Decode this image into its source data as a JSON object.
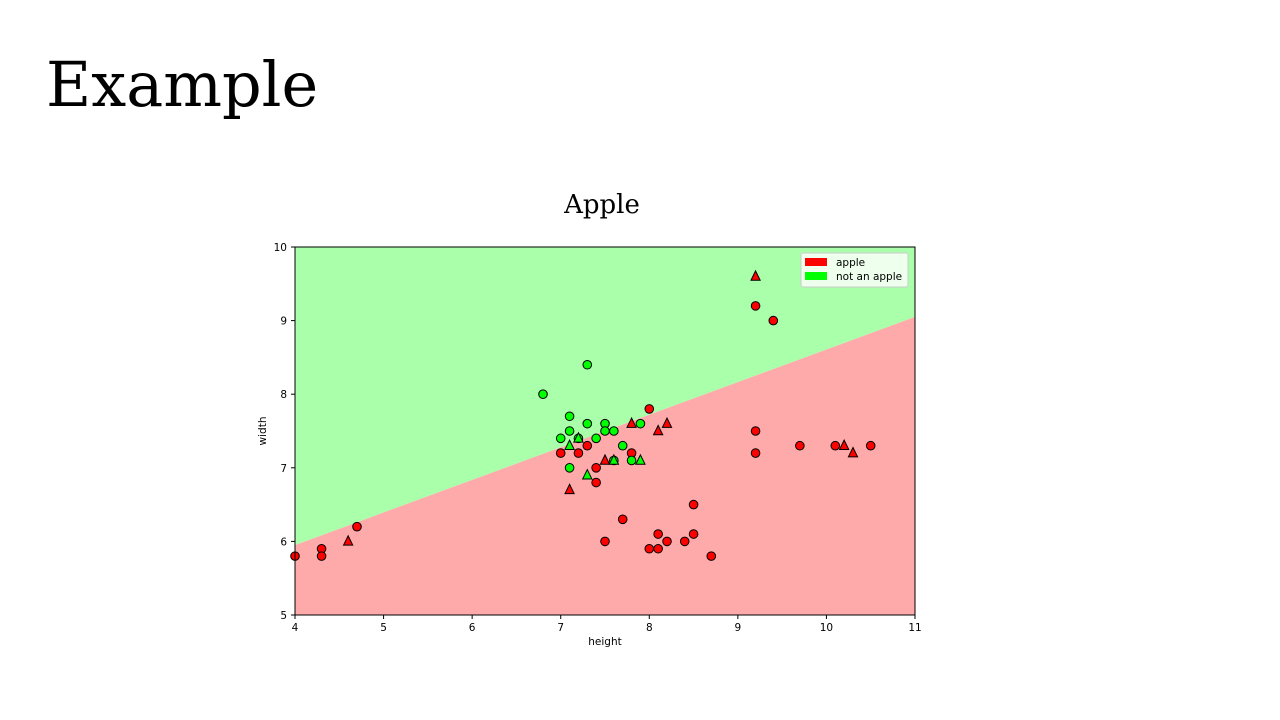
{
  "slide": {
    "title": "Example"
  },
  "chart_data": {
    "type": "scatter",
    "title": "Apple",
    "xlabel": "height",
    "ylabel": "width",
    "xlim": [
      4,
      11
    ],
    "ylim": [
      5,
      10
    ],
    "xticks": [
      4,
      5,
      6,
      7,
      8,
      9,
      10,
      11
    ],
    "yticks": [
      5,
      6,
      7,
      8,
      9,
      10
    ],
    "grid": false,
    "legend_position": "top-right",
    "decision_boundary": {
      "description_line_points": [
        [
          4,
          5.95
        ],
        [
          11,
          9.05
        ]
      ],
      "region_above": "not an apple",
      "region_below": "apple"
    },
    "colors": {
      "apple": "#ff0000",
      "not_apple": "#00ff00",
      "apple_region": "#ffaaaa",
      "not_apple_region": "#aaffaa"
    },
    "legend": [
      {
        "label": "apple",
        "color": "#ff0000"
      },
      {
        "label": "not an apple",
        "color": "#00ff00"
      }
    ],
    "series": [
      {
        "name": "apple",
        "marker": "circle",
        "points": [
          [
            4.0,
            5.8
          ],
          [
            4.3,
            5.9
          ],
          [
            4.3,
            5.8
          ],
          [
            4.7,
            6.2
          ],
          [
            7.0,
            7.2
          ],
          [
            7.2,
            7.2
          ],
          [
            7.3,
            7.3
          ],
          [
            7.4,
            7.0
          ],
          [
            7.4,
            6.8
          ],
          [
            7.5,
            6.0
          ],
          [
            7.7,
            6.3
          ],
          [
            7.8,
            7.2
          ],
          [
            8.0,
            7.8
          ],
          [
            8.0,
            5.9
          ],
          [
            8.1,
            6.1
          ],
          [
            8.1,
            5.9
          ],
          [
            8.2,
            6.0
          ],
          [
            8.4,
            6.0
          ],
          [
            8.5,
            6.5
          ],
          [
            8.5,
            6.1
          ],
          [
            8.7,
            5.8
          ],
          [
            9.2,
            9.2
          ],
          [
            9.4,
            9.0
          ],
          [
            9.2,
            7.5
          ],
          [
            9.2,
            7.2
          ],
          [
            9.7,
            7.3
          ],
          [
            10.1,
            7.3
          ],
          [
            10.5,
            7.3
          ]
        ]
      },
      {
        "name": "apple",
        "marker": "triangle",
        "points": [
          [
            4.6,
            6.0
          ],
          [
            7.1,
            6.7
          ],
          [
            7.5,
            7.1
          ],
          [
            7.8,
            7.6
          ],
          [
            8.1,
            7.5
          ],
          [
            8.2,
            7.6
          ],
          [
            9.2,
            9.6
          ],
          [
            10.2,
            7.3
          ],
          [
            10.3,
            7.2
          ]
        ]
      },
      {
        "name": "not an apple",
        "marker": "circle",
        "points": [
          [
            6.8,
            8.0
          ],
          [
            7.3,
            8.4
          ],
          [
            7.1,
            7.7
          ],
          [
            7.3,
            7.6
          ],
          [
            7.5,
            7.6
          ],
          [
            7.1,
            7.5
          ],
          [
            7.5,
            7.5
          ],
          [
            7.6,
            7.5
          ],
          [
            7.9,
            7.6
          ],
          [
            7.0,
            7.4
          ],
          [
            7.2,
            7.4
          ],
          [
            7.4,
            7.4
          ],
          [
            7.7,
            7.3
          ],
          [
            7.1,
            7.0
          ],
          [
            7.6,
            7.1
          ],
          [
            7.8,
            7.1
          ]
        ]
      },
      {
        "name": "not an apple",
        "marker": "triangle",
        "points": [
          [
            7.1,
            7.3
          ],
          [
            7.2,
            7.4
          ],
          [
            7.3,
            6.9
          ],
          [
            7.6,
            7.1
          ],
          [
            7.9,
            7.1
          ]
        ]
      }
    ]
  }
}
